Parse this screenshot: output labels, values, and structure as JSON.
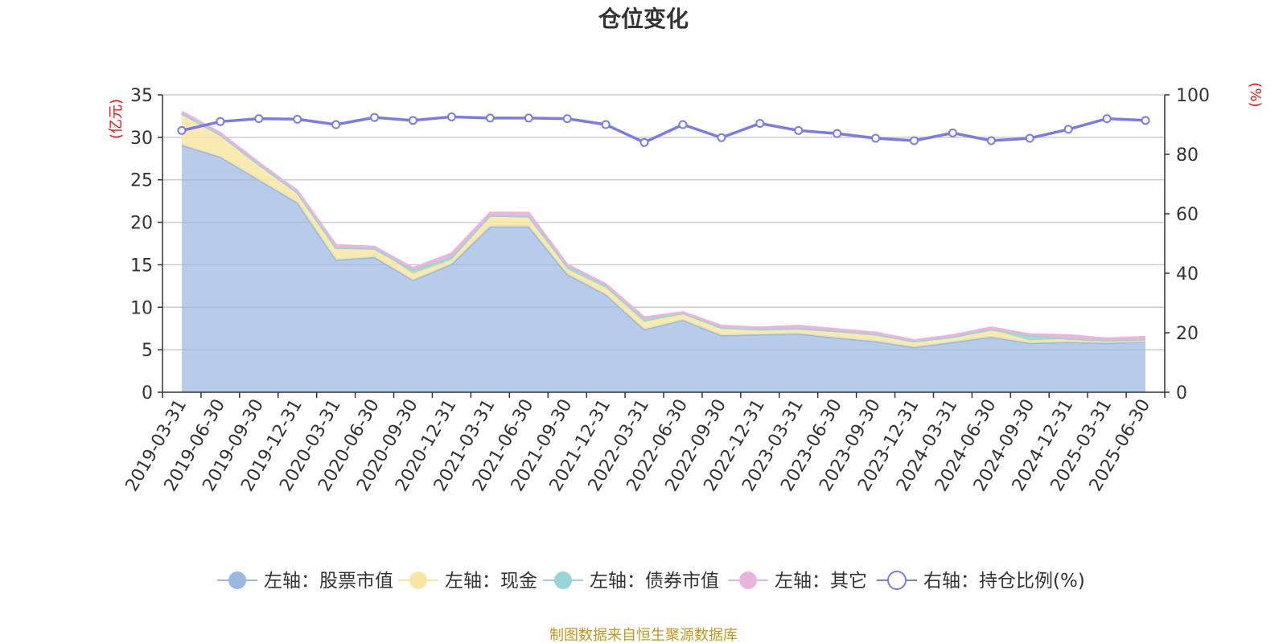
{
  "colors": {
    "stock": "#9bb8e3",
    "cash": "#f7e6a3",
    "bond": "#96d6d6",
    "other": "#e9b5dc",
    "ratio": "#7a7ae8",
    "unit": "#ee1111",
    "source": "#c8961e",
    "grid": "#cccccc",
    "axis": "#333333"
  },
  "chart_data": {
    "type": "area",
    "title": "仓位变化",
    "y_left_unit": "(亿元)",
    "y_right_unit": "(%)",
    "y_left_range": [
      0,
      35
    ],
    "y_left_ticks": [
      0,
      5,
      10,
      15,
      20,
      25,
      30,
      35
    ],
    "y_right_range": [
      0,
      100
    ],
    "y_right_ticks": [
      0,
      20,
      40,
      60,
      80,
      100
    ],
    "grid": true,
    "legend_position": "bottom",
    "categories": [
      "2019-03-31",
      "2019-06-30",
      "2019-09-30",
      "2019-12-31",
      "2020-03-31",
      "2020-06-30",
      "2020-09-30",
      "2020-12-31",
      "2021-03-31",
      "2021-06-30",
      "2021-09-30",
      "2021-12-31",
      "2022-03-31",
      "2022-06-30",
      "2022-09-30",
      "2022-12-31",
      "2023-03-31",
      "2023-06-30",
      "2023-09-30",
      "2023-12-31",
      "2024-03-31",
      "2024-06-30",
      "2024-09-30",
      "2024-12-31",
      "2025-03-31",
      "2025-06-30"
    ],
    "series": [
      {
        "name": "左轴：股票市值",
        "axis": "left",
        "stack": true,
        "values": [
          29.1,
          27.7,
          25.0,
          22.3,
          15.6,
          15.9,
          13.2,
          15.1,
          19.5,
          19.5,
          13.9,
          11.5,
          7.4,
          8.5,
          6.7,
          6.8,
          6.9,
          6.4,
          6.0,
          5.3,
          5.9,
          6.5,
          5.8,
          5.9,
          5.8,
          5.9
        ]
      },
      {
        "name": "左轴：现金",
        "axis": "left",
        "stack": true,
        "values": [
          3.7,
          2.6,
          1.8,
          1.2,
          1.4,
          1.0,
          0.8,
          0.5,
          1.3,
          1.2,
          0.6,
          0.8,
          0.9,
          0.7,
          0.9,
          0.6,
          0.6,
          0.8,
          0.8,
          0.7,
          0.6,
          0.9,
          0.3,
          0.4,
          0.3,
          0.3
        ]
      },
      {
        "name": "左轴：债券市值",
        "axis": "left",
        "stack": true,
        "values": [
          0.0,
          0.0,
          0.0,
          0.0,
          0.0,
          0.0,
          0.4,
          0.3,
          0.0,
          0.0,
          0.4,
          0.3,
          0.3,
          0.1,
          0.0,
          0.0,
          0.0,
          0.0,
          0.0,
          0.0,
          0.0,
          0.0,
          0.6,
          0.0,
          0.0,
          0.0
        ]
      },
      {
        "name": "左轴：其它",
        "axis": "left",
        "stack": true,
        "values": [
          0.2,
          0.2,
          0.2,
          0.2,
          0.3,
          0.2,
          0.2,
          0.4,
          0.3,
          0.4,
          0.1,
          0.1,
          0.2,
          0.1,
          0.2,
          0.2,
          0.3,
          0.2,
          0.2,
          0.1,
          0.2,
          0.2,
          0.1,
          0.4,
          0.2,
          0.3
        ]
      },
      {
        "name": "右轴：持仓比例(%)",
        "axis": "right",
        "type": "line",
        "values": [
          88.0,
          91.0,
          92.0,
          91.8,
          90.0,
          92.4,
          91.4,
          92.6,
          92.2,
          92.2,
          92.0,
          90.0,
          84.0,
          90.0,
          85.6,
          90.4,
          88.0,
          87.0,
          85.4,
          84.6,
          87.2,
          84.6,
          85.4,
          88.4,
          92.0,
          91.4
        ]
      }
    ]
  },
  "source_text": "制图数据来自恒生聚源数据库"
}
